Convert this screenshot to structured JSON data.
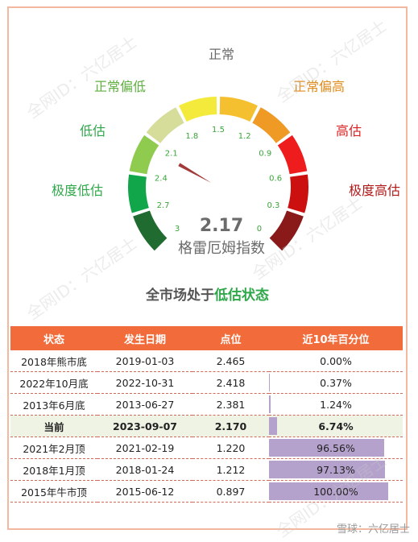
{
  "chart_data": {
    "type": "gauge",
    "title": "格雷厄姆指数",
    "value": 2.17,
    "value_label": "2.17",
    "range": [
      3,
      0
    ],
    "ticks": [
      "3",
      "2.7",
      "2.4",
      "2.1",
      "1.8",
      "1.5",
      "1.2",
      "0.9",
      "0.6",
      "0.3",
      "0"
    ],
    "zones": [
      {
        "label": "极度低估",
        "color": "#1f7a3a",
        "label_color": "#2fa84a"
      },
      {
        "label": "低估",
        "color": "#8cc84b",
        "label_color": "#2fa84a"
      },
      {
        "label": "正常偏低",
        "color": "#d9df95",
        "label_color": "#5fb040"
      },
      {
        "label": "正常",
        "color": "#f5e53b",
        "label_color": "#6b6b6b"
      },
      {
        "label": "正常偏高",
        "color": "#f0a733",
        "label_color": "#e08a1a"
      },
      {
        "label": "高估",
        "color": "#ee2a2a",
        "label_color": "#d92222"
      },
      {
        "label": "极度高估",
        "color": "#8b1818",
        "label_color": "#b01818"
      }
    ],
    "segment_colors": [
      "#1f6b30",
      "#12a64a",
      "#8ecb4e",
      "#d6dd9a",
      "#f4ea3b",
      "#f5c02f",
      "#ee9a24",
      "#ee1c1c",
      "#cc1010",
      "#8a1a1a"
    ]
  },
  "status": {
    "prefix": "全市场处于",
    "highlight": "低估状态"
  },
  "table": {
    "headers": [
      "状态",
      "发生日期",
      "点位",
      "近10年百分位"
    ],
    "rows": [
      {
        "state": "2018年熊市底",
        "date": "2019-01-03",
        "value": "2.465",
        "pct_label": "0.00%",
        "pct": 0.0,
        "current": false
      },
      {
        "state": "2022年10月底",
        "date": "2022-10-31",
        "value": "2.418",
        "pct_label": "0.37%",
        "pct": 0.37,
        "current": false
      },
      {
        "state": "2013年6月底",
        "date": "2013-06-27",
        "value": "2.381",
        "pct_label": "1.24%",
        "pct": 1.24,
        "current": false
      },
      {
        "state": "当前",
        "date": "2023-09-07",
        "value": "2.170",
        "pct_label": "6.74%",
        "pct": 6.74,
        "current": true
      },
      {
        "state": "2021年2月顶",
        "date": "2021-02-19",
        "value": "1.220",
        "pct_label": "96.56%",
        "pct": 96.56,
        "current": false
      },
      {
        "state": "2018年1月顶",
        "date": "2018-01-24",
        "value": "1.212",
        "pct_label": "97.13%",
        "pct": 97.13,
        "current": false
      },
      {
        "state": "2015年牛市顶",
        "date": "2015-06-12",
        "value": "0.897",
        "pct_label": "100.00%",
        "pct": 100.0,
        "current": false
      }
    ]
  },
  "watermark": "全网ID：六亿居士",
  "footer": "雪球：六亿居士"
}
